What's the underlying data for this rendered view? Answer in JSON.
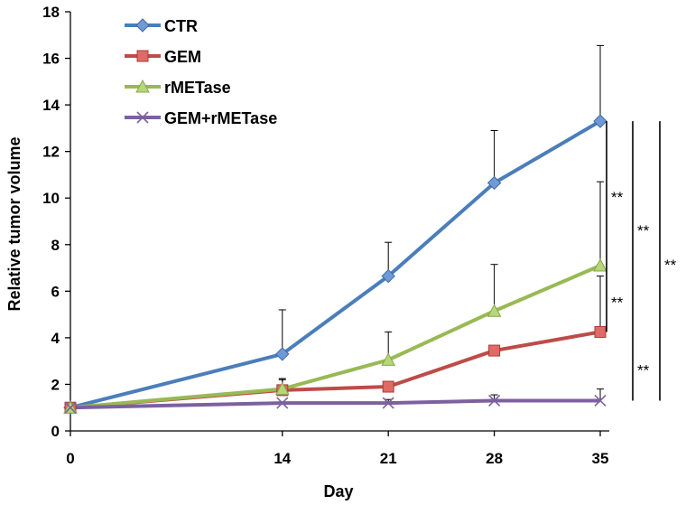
{
  "chart_data": {
    "type": "line",
    "title": "",
    "xlabel": "Day",
    "ylabel": "Relative tumor volume",
    "x": [
      0,
      14,
      21,
      28,
      35
    ],
    "x_tick_labels": [
      "0",
      "14",
      "21",
      "28",
      "35"
    ],
    "y_ticks": [
      0,
      2,
      4,
      6,
      8,
      10,
      12,
      14,
      16,
      18
    ],
    "y_tick_labels": [
      "0",
      "2",
      "4",
      "6",
      "8",
      "10",
      "12",
      "14",
      "16",
      "18"
    ],
    "ylim": [
      0,
      18
    ],
    "grid": false,
    "legend_position": "top-left",
    "series": [
      {
        "name": "CTR",
        "values": [
          1.0,
          3.3,
          6.65,
          10.65,
          13.3
        ],
        "errors": [
          0,
          1.9,
          1.45,
          2.25,
          3.25
        ],
        "color": "#4a7ebb",
        "marker": "diamond"
      },
      {
        "name": "GEM",
        "values": [
          1.0,
          1.75,
          1.9,
          3.45,
          4.25
        ],
        "errors": [
          0,
          0.5,
          0,
          0,
          2.4
        ],
        "color": "#be4b48",
        "marker": "square"
      },
      {
        "name": "rMETase",
        "values": [
          1.0,
          1.8,
          3.05,
          5.15,
          7.1
        ],
        "errors": [
          0,
          0.4,
          1.2,
          2.0,
          3.6
        ],
        "color": "#98b954",
        "marker": "triangle"
      },
      {
        "name": "GEM+rMETase",
        "values": [
          1.0,
          1.2,
          1.2,
          1.3,
          1.3
        ],
        "errors": [
          0,
          0,
          0.15,
          0.25,
          0.5
        ],
        "color": "#7d60a0",
        "marker": "x"
      }
    ],
    "annotations": [
      {
        "text": "**",
        "between": [
          "CTR",
          "rMETase"
        ]
      },
      {
        "text": "**",
        "between": [
          "CTR",
          "GEM"
        ]
      },
      {
        "text": "**",
        "between": [
          "CTR",
          "GEM+rMETase"
        ]
      },
      {
        "text": "**",
        "between": [
          "rMETase",
          "GEM"
        ]
      },
      {
        "text": "**",
        "between": [
          "GEM",
          "GEM+rMETase"
        ]
      }
    ]
  }
}
